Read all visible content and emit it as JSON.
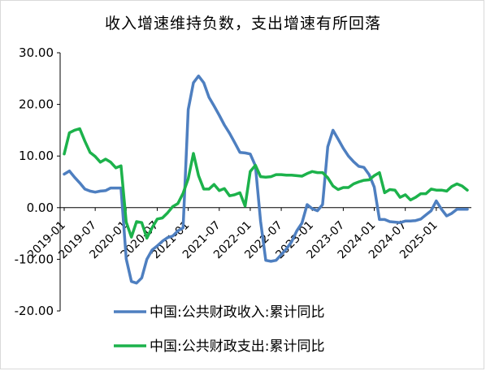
{
  "chart_data": {
    "type": "line",
    "title": "收入增速维持负数，支出增速有所回落",
    "xlabel": "",
    "ylabel": "",
    "ylim": [
      -20,
      30
    ],
    "yticks": [
      "30.00",
      "20.00",
      "10.00",
      "0.00",
      "-10.00",
      "-20.00"
    ],
    "ytick_values": [
      30,
      20,
      10,
      0,
      -10,
      -20
    ],
    "xtick_labels": [
      "2019-01",
      "2019-07",
      "2020-01",
      "2020-07",
      "2021-01",
      "2021-07",
      "2022-01",
      "2022-07",
      "2023-01",
      "2023-07",
      "2024-01",
      "2024-07",
      "2025-01"
    ],
    "x_start": "2019-01",
    "grid": false,
    "legend_position": "bottom",
    "x": [
      "2019-01",
      "2019-02",
      "2019-03",
      "2019-04",
      "2019-05",
      "2019-06",
      "2019-07",
      "2019-08",
      "2019-09",
      "2019-10",
      "2019-11",
      "2019-12",
      "2020-01",
      "2020-02",
      "2020-03",
      "2020-04",
      "2020-05",
      "2020-06",
      "2020-07",
      "2020-08",
      "2020-09",
      "2020-10",
      "2020-11",
      "2020-12",
      "2021-01",
      "2021-02",
      "2021-03",
      "2021-04",
      "2021-05",
      "2021-06",
      "2021-07",
      "2021-08",
      "2021-09",
      "2021-10",
      "2021-11",
      "2021-12",
      "2022-01",
      "2022-02",
      "2022-03",
      "2022-04",
      "2022-05",
      "2022-06",
      "2022-07",
      "2022-08",
      "2022-09",
      "2022-10",
      "2022-11",
      "2022-12",
      "2023-01",
      "2023-02",
      "2023-03",
      "2023-04",
      "2023-05",
      "2023-06",
      "2023-07",
      "2023-08",
      "2023-09",
      "2023-10",
      "2023-11",
      "2023-12",
      "2024-01",
      "2024-02",
      "2024-03",
      "2024-04",
      "2024-05",
      "2024-06",
      "2024-07",
      "2024-08",
      "2024-09",
      "2024-10",
      "2024-11",
      "2024-12",
      "2025-01",
      "2025-02",
      "2025-03",
      "2025-04",
      "2025-05",
      "2025-06",
      "2025-07"
    ],
    "series": [
      {
        "name": "中国:公共财政收入:累计同比",
        "color": "#4e7fc0",
        "values": [
          6.5,
          7.1,
          5.9,
          4.8,
          3.6,
          3.2,
          3.0,
          3.2,
          3.3,
          3.8,
          3.8,
          3.8,
          -9.9,
          -14.3,
          -14.6,
          -13.6,
          -10.0,
          -8.2,
          -7.4,
          -6.5,
          -5.8,
          -5.5,
          -4.5,
          -3.9,
          19.0,
          24.2,
          25.5,
          24.2,
          21.4,
          19.7,
          17.9,
          16.0,
          14.4,
          12.6,
          10.7,
          10.6,
          10.4,
          8.1,
          -2.6,
          -10.2,
          -10.4,
          -10.2,
          -9.1,
          -8.0,
          -6.6,
          -4.5,
          -3.0,
          0.6,
          -0.2,
          -0.6,
          0.6,
          11.8,
          15.0,
          13.3,
          11.5,
          10.0,
          8.9,
          8.0,
          7.8,
          6.4,
          4.0,
          -2.3,
          -2.3,
          -2.7,
          -2.8,
          -2.9,
          -2.6,
          -2.6,
          -2.5,
          -2.2,
          -1.4,
          -0.6,
          1.3,
          -0.3,
          -1.6,
          -1.1,
          -0.3,
          -0.3,
          -0.3
        ]
      },
      {
        "name": "中国:公共财政支出:累计同比",
        "color": "#1cb24b",
        "values": [
          10.4,
          14.5,
          15.0,
          15.3,
          12.9,
          10.7,
          9.9,
          8.8,
          9.4,
          8.8,
          7.7,
          8.1,
          -2.8,
          -5.7,
          -2.7,
          -2.9,
          -5.9,
          -3.9,
          -2.2,
          -2.0,
          -1.0,
          0.2,
          0.8,
          2.8,
          5.6,
          10.5,
          6.2,
          3.6,
          3.6,
          4.5,
          3.3,
          3.7,
          2.3,
          2.5,
          2.9,
          0.3,
          7.0,
          8.2,
          6.0,
          5.9,
          6.0,
          6.4,
          6.4,
          6.3,
          6.3,
          6.2,
          6.1,
          6.6,
          7.0,
          6.8,
          6.8,
          5.8,
          4.2,
          3.5,
          3.9,
          3.9,
          4.6,
          5.0,
          5.3,
          5.4,
          6.2,
          6.8,
          2.9,
          3.5,
          3.4,
          2.0,
          2.5,
          1.5,
          2.0,
          2.7,
          2.7,
          3.6,
          3.4,
          3.4,
          3.2,
          4.1,
          4.6,
          4.2,
          3.4
        ]
      }
    ]
  }
}
